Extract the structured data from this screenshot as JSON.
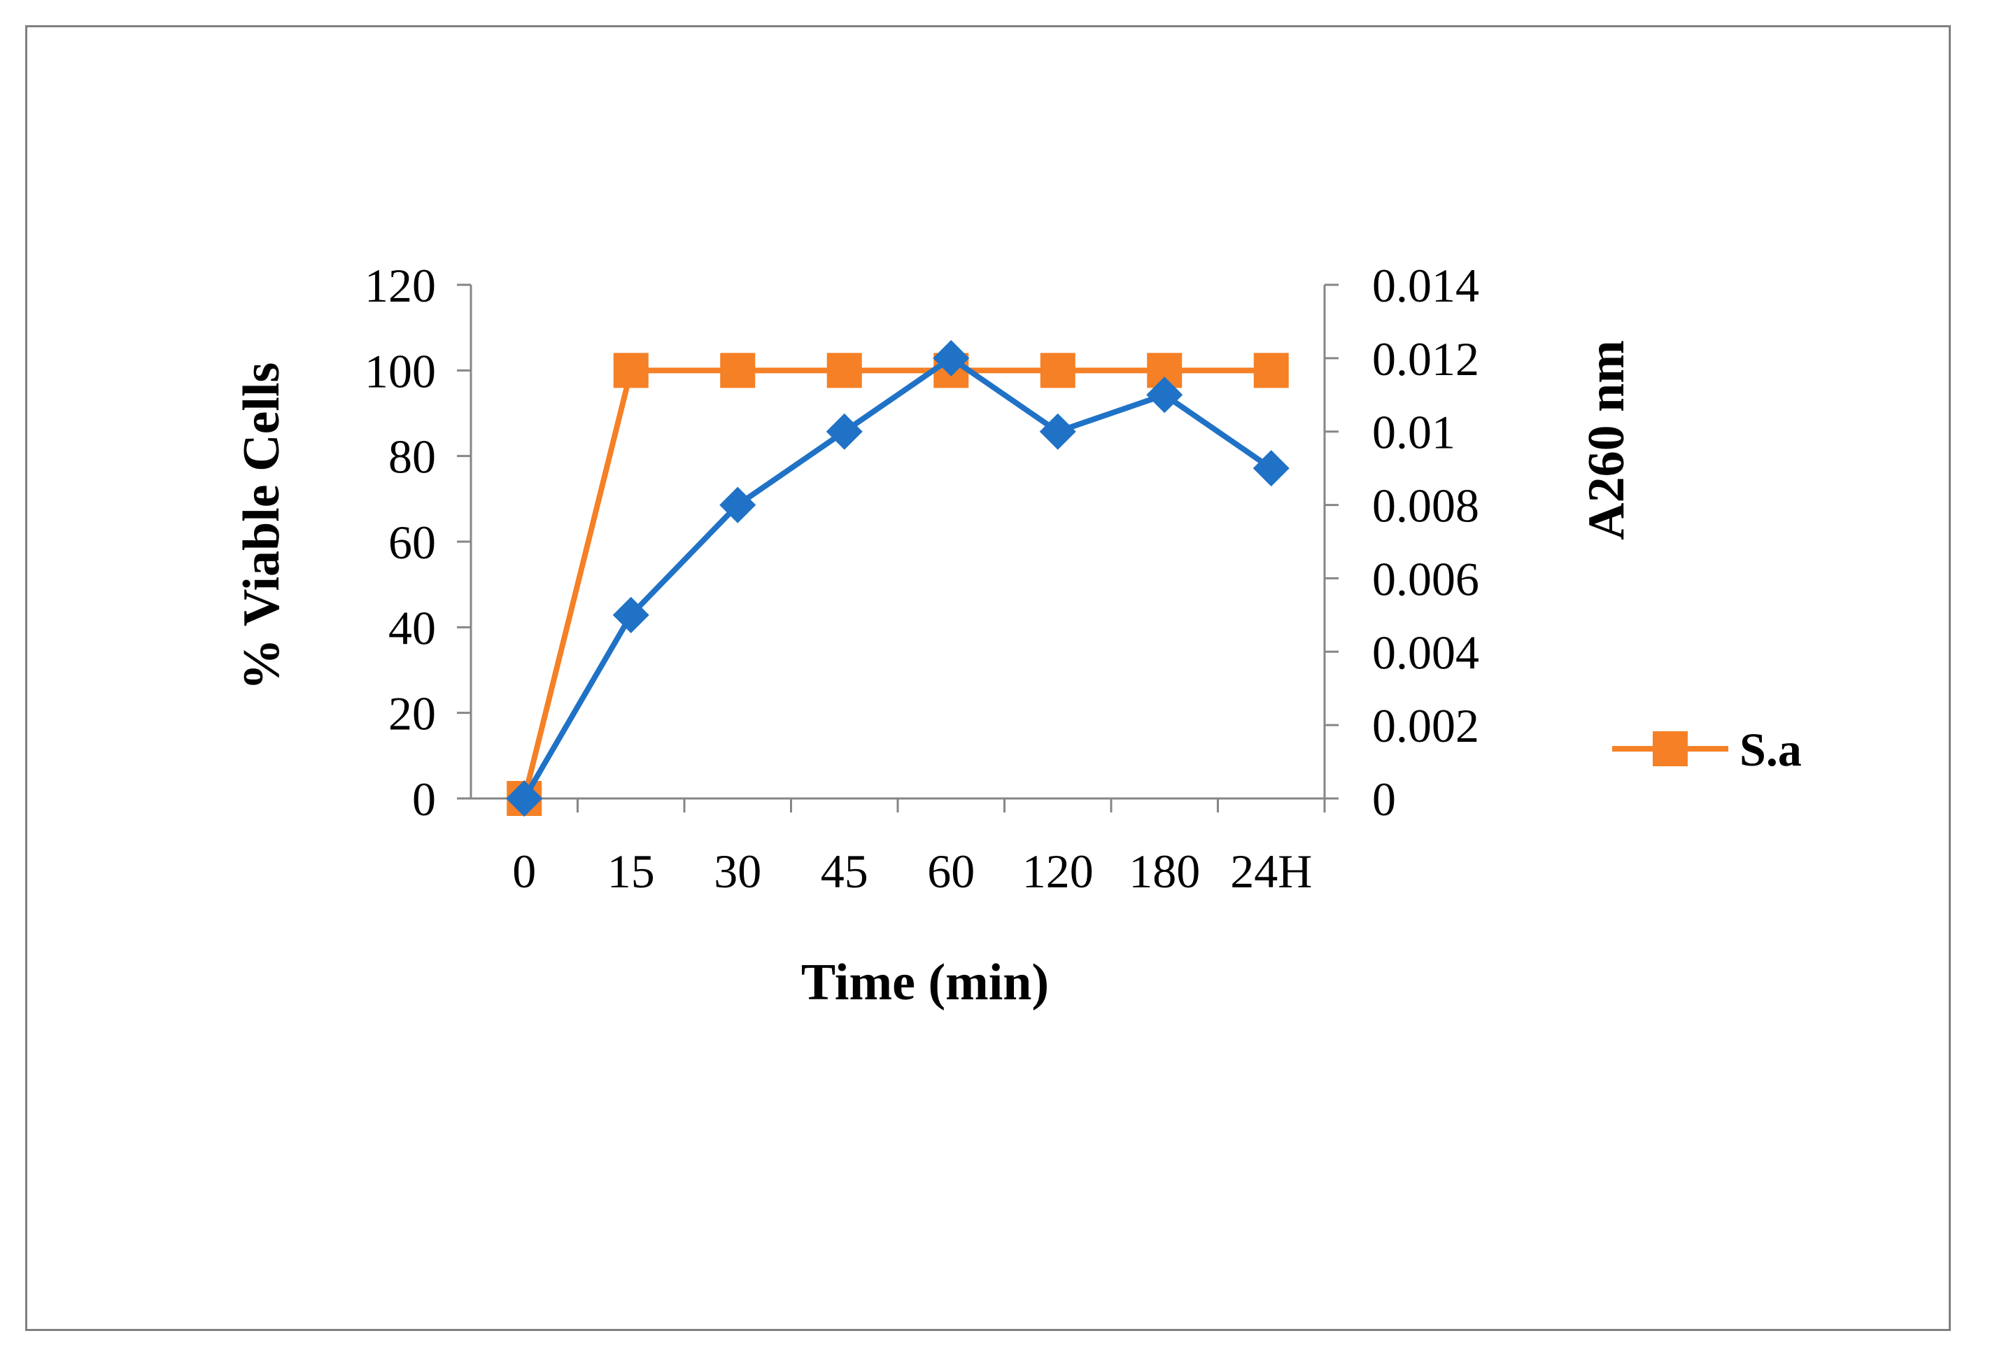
{
  "chart_data": {
    "type": "line",
    "title": "",
    "categories": [
      "0",
      "15",
      "30",
      "45",
      "60",
      "120",
      "180",
      "24H"
    ],
    "xlabel": "Time (min)",
    "ylabel": "% Viable Cells",
    "y2label": "A260 nm",
    "ylim": [
      0,
      120
    ],
    "y2lim": [
      0,
      0.014
    ],
    "yticks": [
      "0",
      "20",
      "40",
      "60",
      "80",
      "100",
      "120"
    ],
    "y2ticks": [
      "0",
      "0.002",
      "0.004",
      "0.006",
      "0.008",
      "0.01",
      "0.012",
      "0.014"
    ],
    "grid": false,
    "legend_position": "right",
    "series": [
      {
        "name": "S.a",
        "axis": "left",
        "marker": "square",
        "color": "#F58025",
        "show_in_legend": true,
        "values": [
          0,
          100,
          100,
          100,
          100,
          100,
          100,
          100
        ]
      },
      {
        "name": "",
        "axis": "right",
        "marker": "diamond",
        "color": "#1F72C6",
        "show_in_legend": false,
        "values": [
          0,
          0.005,
          0.008,
          0.01,
          0.012,
          0.01,
          0.011,
          0.009
        ]
      }
    ]
  },
  "colors": {
    "axis": "#868686",
    "frame": "#7f7f7f"
  }
}
